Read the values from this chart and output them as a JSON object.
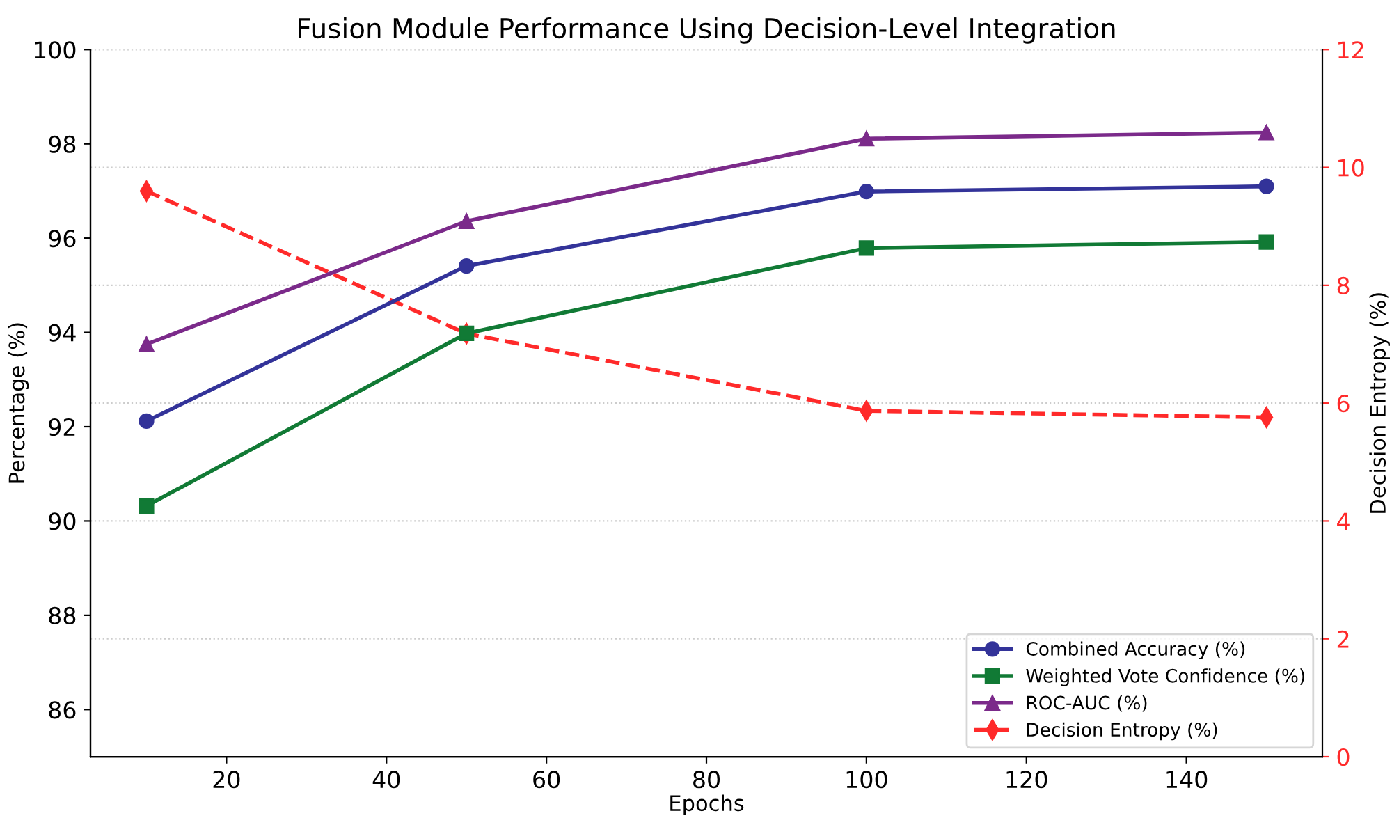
{
  "chart_data": {
    "type": "line",
    "title": "Fusion Module Performance Using Decision-Level Integration",
    "xlabel": "Epochs",
    "ylabel": "Percentage (%)",
    "y2label": "Decision Entropy (%)",
    "x": [
      10,
      50,
      100,
      150
    ],
    "series": [
      {
        "name": "Combined Accuracy (%)",
        "color": "#333399",
        "marker": "circle",
        "line_style": "solid",
        "values": [
          92.12,
          95.41,
          96.99,
          97.1
        ]
      },
      {
        "name": "Weighted Vote Confidence (%)",
        "color": "#117a35",
        "marker": "square",
        "line_style": "solid",
        "values": [
          90.32,
          93.98,
          95.79,
          95.92
        ]
      },
      {
        "name": "ROC-AUC (%)",
        "color": "#7b2a8a",
        "marker": "triangle",
        "line_style": "solid",
        "values": [
          93.75,
          96.36,
          98.11,
          98.24
        ]
      },
      {
        "name": "Decision Entropy (%)",
        "color": "#ff2a2a",
        "marker": "diamond",
        "line_style": "dashed",
        "axis": "y2",
        "values": [
          9.6,
          7.18,
          5.87,
          5.76
        ]
      }
    ],
    "xlim": [
      3,
      157
    ],
    "xticks": [
      20,
      40,
      60,
      80,
      100,
      120,
      140
    ],
    "ylim": [
      85,
      100
    ],
    "yticks": [
      86,
      88,
      90,
      92,
      94,
      96,
      98,
      100
    ],
    "y2lim": [
      0,
      12
    ],
    "y2ticks": [
      0,
      2,
      4,
      6,
      8,
      10,
      12
    ],
    "grid": "y",
    "legend": "bottom right"
  }
}
